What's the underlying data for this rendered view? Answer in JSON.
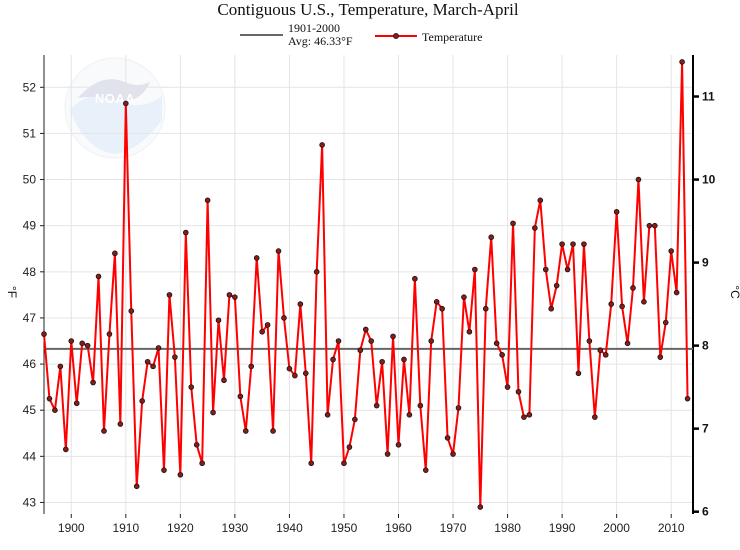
{
  "chart_data": {
    "type": "line",
    "title": "Contiguous U.S., Temperature, March-April",
    "ylabel_left": "°F",
    "ylabel_right": "°C",
    "xlim": [
      1895,
      2014
    ],
    "ylim": [
      42.75,
      52.7
    ],
    "x_ticks": [
      1900,
      1910,
      1920,
      1930,
      1940,
      1950,
      1960,
      1970,
      1980,
      1990,
      2000,
      2010
    ],
    "y_ticks_left": [
      43,
      44,
      45,
      46,
      47,
      48,
      49,
      50,
      51,
      52
    ],
    "y_ticks_right": [
      6,
      7,
      8,
      9,
      10,
      11
    ],
    "grid": true,
    "legend_position": "top-center",
    "baseline": {
      "label_line1": "1901-2000",
      "label_line2": "Avg: 46.33°F",
      "value": 46.33,
      "color": "#666666"
    },
    "series": [
      {
        "name": "Temperature",
        "color": "#ff0000",
        "marker_fill": "#8b1a1a",
        "x": [
          1895,
          1896,
          1897,
          1898,
          1899,
          1900,
          1901,
          1902,
          1903,
          1904,
          1905,
          1906,
          1907,
          1908,
          1909,
          1910,
          1911,
          1912,
          1913,
          1914,
          1915,
          1916,
          1917,
          1918,
          1919,
          1920,
          1921,
          1922,
          1923,
          1924,
          1925,
          1926,
          1927,
          1928,
          1929,
          1930,
          1931,
          1932,
          1933,
          1934,
          1935,
          1936,
          1937,
          1938,
          1939,
          1940,
          1941,
          1942,
          1943,
          1944,
          1945,
          1946,
          1947,
          1948,
          1949,
          1950,
          1951,
          1952,
          1953,
          1954,
          1955,
          1956,
          1957,
          1958,
          1959,
          1960,
          1961,
          1962,
          1963,
          1964,
          1965,
          1966,
          1967,
          1968,
          1969,
          1970,
          1971,
          1972,
          1973,
          1974,
          1975,
          1976,
          1977,
          1978,
          1979,
          1980,
          1981,
          1982,
          1983,
          1984,
          1985,
          1986,
          1987,
          1988,
          1989,
          1990,
          1991,
          1992,
          1993,
          1994,
          1995,
          1996,
          1997,
          1998,
          1999,
          2000,
          2001,
          2002,
          2003,
          2004,
          2005,
          2006,
          2007,
          2008,
          2009,
          2010,
          2011,
          2012,
          2013
        ],
        "values": [
          46.65,
          45.25,
          45.0,
          45.95,
          44.15,
          46.5,
          45.15,
          46.45,
          46.4,
          45.6,
          47.9,
          44.55,
          46.65,
          48.4,
          44.7,
          51.65,
          47.15,
          43.35,
          45.2,
          46.05,
          45.95,
          46.35,
          43.7,
          47.5,
          46.15,
          43.6,
          48.85,
          45.5,
          44.25,
          43.85,
          49.55,
          44.95,
          46.95,
          45.65,
          47.5,
          47.45,
          45.3,
          44.55,
          45.95,
          48.3,
          46.7,
          46.85,
          44.55,
          48.45,
          47.0,
          45.9,
          45.75,
          47.3,
          45.8,
          43.85,
          48.0,
          50.75,
          44.9,
          46.1,
          46.5,
          43.85,
          44.2,
          44.8,
          46.3,
          46.75,
          46.5,
          45.1,
          46.05,
          44.05,
          46.6,
          44.25,
          46.1,
          44.9,
          47.85,
          45.1,
          43.7,
          46.5,
          47.35,
          47.2,
          44.4,
          44.05,
          45.05,
          47.45,
          46.7,
          48.05,
          42.9,
          47.2,
          48.75,
          46.45,
          46.2,
          45.5,
          49.05,
          45.4,
          44.85,
          44.9,
          48.95,
          49.55,
          48.05,
          47.2,
          47.7,
          48.6,
          48.05,
          48.6,
          45.8,
          48.6,
          46.5,
          44.85,
          46.3,
          46.2,
          47.3,
          49.3,
          47.25,
          46.45,
          47.65,
          50.0,
          47.35,
          49.0,
          49.0,
          46.15,
          46.9,
          48.45,
          47.55,
          52.55,
          45.25
        ]
      }
    ]
  }
}
